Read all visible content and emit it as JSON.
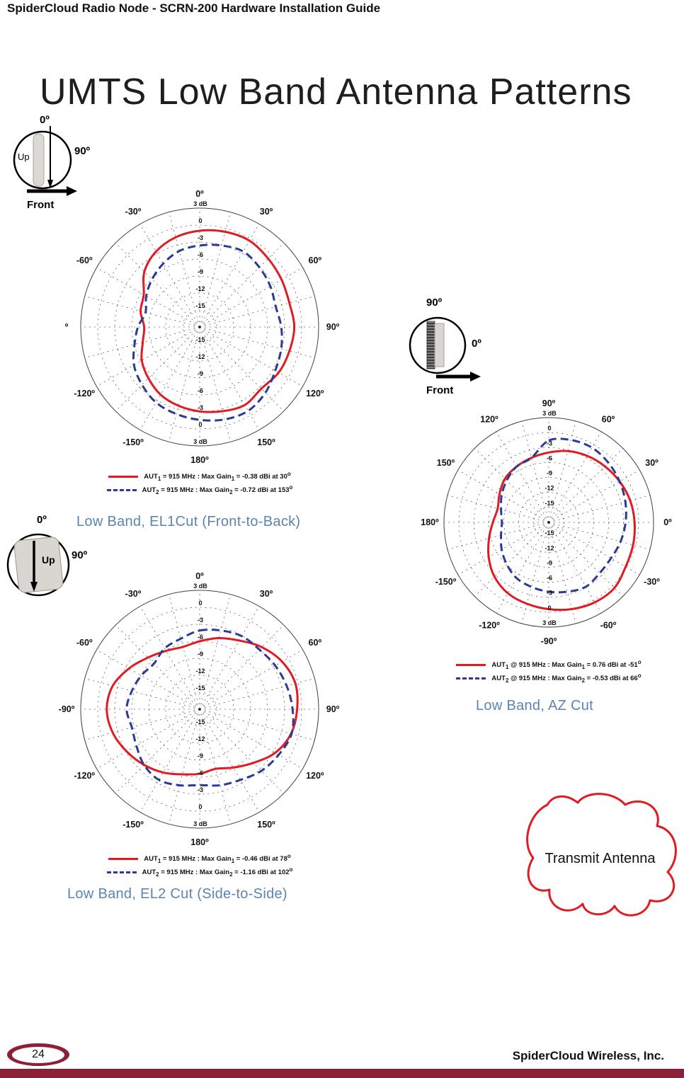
{
  "header": {
    "title": "SpiderCloud Radio Node - SCRN-200 Hardware Installation Guide"
  },
  "page_title": "UMTS Low Band Antenna Patterns",
  "captions": {
    "el1": "Low Band, EL1Cut (Front-to-Back)",
    "el2": "Low Band, EL2 Cut (Side-to-Side)",
    "az": "Low Band, AZ Cut"
  },
  "transmit_antenna": {
    "label": "Transmit Antenna"
  },
  "footer": {
    "page_number": "24",
    "company": "SpiderCloud Wireless, Inc."
  },
  "diagrams": {
    "el1": {
      "top": "0º",
      "up": "Up",
      "right": "90º",
      "front": "Front"
    },
    "az": {
      "top": "90º",
      "right": "0º",
      "front": "Front"
    },
    "el2": {
      "top": "0º",
      "up": "Up",
      "right": "90º"
    }
  },
  "colors": {
    "aut1": "#e11b24",
    "aut2": "#2b3a96",
    "caption": "#5b84b5",
    "footer_bar": "#8c2036"
  },
  "chart_data": [
    {
      "id": "el1",
      "type": "polar-line",
      "orientation": "top-cw",
      "size": 420,
      "radius": 168,
      "scale": {
        "outer": 3,
        "center": -18,
        "rings": [
          3,
          0,
          -3,
          -6,
          -9,
          -12,
          -15
        ],
        "ring_labels": [
          "3 dB",
          "0",
          "-3",
          "-6",
          "-9",
          "-12",
          "-15"
        ]
      },
      "angle_labels": [
        {
          "a": 0,
          "t": "0º"
        },
        {
          "a": 30,
          "t": "30º"
        },
        {
          "a": 60,
          "t": "60º"
        },
        {
          "a": 90,
          "t": "90º"
        },
        {
          "a": 120,
          "t": "120º"
        },
        {
          "a": 150,
          "t": "150º"
        },
        {
          "a": 180,
          "t": "180º"
        },
        {
          "a": -150,
          "t": "-150º"
        },
        {
          "a": -120,
          "t": "-120º"
        },
        {
          "a": -90,
          "t": "º"
        },
        {
          "a": -60,
          "t": "-60º"
        },
        {
          "a": -30,
          "t": "-30º"
        }
      ],
      "series": [
        {
          "name": "AUT1",
          "color": "#e11b24",
          "dash": false,
          "points": [
            [
              0,
              -1.0
            ],
            [
              15,
              -0.6
            ],
            [
              30,
              -0.4
            ],
            [
              45,
              -0.9
            ],
            [
              60,
              -1.3
            ],
            [
              75,
              -1.6
            ],
            [
              90,
              -1.3
            ],
            [
              105,
              -1.6
            ],
            [
              120,
              -1.9
            ],
            [
              135,
              -2.6
            ],
            [
              150,
              -2.1
            ],
            [
              165,
              -2.6
            ],
            [
              180,
              -3.1
            ],
            [
              195,
              -3.6
            ],
            [
              210,
              -4.2
            ],
            [
              225,
              -5.2
            ],
            [
              240,
              -6.2
            ],
            [
              255,
              -7.6
            ],
            [
              270,
              -8.2
            ],
            [
              285,
              -7.2
            ],
            [
              300,
              -6.6
            ],
            [
              315,
              -4.2
            ],
            [
              330,
              -2.6
            ],
            [
              345,
              -1.6
            ]
          ]
        },
        {
          "name": "AUT2",
          "color": "#2b3a96",
          "dash": true,
          "points": [
            [
              0,
              -3.6
            ],
            [
              15,
              -3.1
            ],
            [
              30,
              -2.6
            ],
            [
              45,
              -3.1
            ],
            [
              60,
              -3.6
            ],
            [
              75,
              -4.1
            ],
            [
              90,
              -3.6
            ],
            [
              105,
              -3.1
            ],
            [
              120,
              -2.6
            ],
            [
              135,
              -1.6
            ],
            [
              150,
              -0.9
            ],
            [
              165,
              -1.1
            ],
            [
              180,
              -1.6
            ],
            [
              195,
              -2.1
            ],
            [
              210,
              -2.6
            ],
            [
              225,
              -3.6
            ],
            [
              240,
              -4.6
            ],
            [
              255,
              -6.1
            ],
            [
              270,
              -7.1
            ],
            [
              285,
              -8.1
            ],
            [
              300,
              -7.1
            ],
            [
              315,
              -6.1
            ],
            [
              330,
              -5.1
            ],
            [
              345,
              -4.1
            ]
          ]
        }
      ],
      "legend": [
        {
          "color": "#e11b24",
          "dash": false,
          "parts": [
            {
              "t": "AUT"
            },
            {
              "sub": "1"
            },
            {
              "t": " = 915 MHz : Max Gain"
            },
            {
              "sub": "1"
            },
            {
              "t": " = -0.38 dBi at 30"
            },
            {
              "sup": "o"
            }
          ]
        },
        {
          "color": "#2b3a96",
          "dash": true,
          "parts": [
            {
              "t": "AUT"
            },
            {
              "sub": "2"
            },
            {
              "t": " = 915 MHz : Max Gain"
            },
            {
              "sub": "2"
            },
            {
              "t": " = -0.72 dBi at 153"
            },
            {
              "sup": "o"
            }
          ]
        }
      ]
    },
    {
      "id": "el2",
      "type": "polar-line",
      "orientation": "top-cw",
      "size": 420,
      "radius": 168,
      "scale": {
        "outer": 3,
        "center": -18,
        "rings": [
          3,
          0,
          -3,
          -6,
          -9,
          -12,
          -15
        ],
        "ring_labels": [
          "3 dB",
          "0",
          "-3",
          "-6",
          "-9",
          "-12",
          "-15"
        ]
      },
      "angle_labels": [
        {
          "a": 0,
          "t": "0º"
        },
        {
          "a": 30,
          "t": "30º"
        },
        {
          "a": 60,
          "t": "60º"
        },
        {
          "a": 90,
          "t": "90º"
        },
        {
          "a": 120,
          "t": "120º"
        },
        {
          "a": 150,
          "t": "150º"
        },
        {
          "a": 180,
          "t": "180º"
        },
        {
          "a": -150,
          "t": "-150º"
        },
        {
          "a": -120,
          "t": "-120º"
        },
        {
          "a": -90,
          "t": "-90º"
        },
        {
          "a": -60,
          "t": "-60º"
        },
        {
          "a": -30,
          "t": "-30º"
        }
      ],
      "series": [
        {
          "name": "AUT1",
          "color": "#e11b24",
          "dash": false,
          "points": [
            [
              0,
              -6.0
            ],
            [
              15,
              -5.0
            ],
            [
              30,
              -4.0
            ],
            [
              45,
              -2.5
            ],
            [
              60,
              -1.2
            ],
            [
              75,
              -0.5
            ],
            [
              90,
              -0.8
            ],
            [
              105,
              -1.3
            ],
            [
              120,
              -2.6
            ],
            [
              135,
              -4.6
            ],
            [
              150,
              -6.1
            ],
            [
              165,
              -7.1
            ],
            [
              180,
              -6.6
            ],
            [
              195,
              -6.1
            ],
            [
              210,
              -5.1
            ],
            [
              225,
              -4.1
            ],
            [
              240,
              -3.1
            ],
            [
              255,
              -2.1
            ],
            [
              270,
              -1.6
            ],
            [
              285,
              -2.1
            ],
            [
              300,
              -3.6
            ],
            [
              315,
              -5.1
            ],
            [
              330,
              -6.1
            ],
            [
              345,
              -6.6
            ]
          ]
        },
        {
          "name": "AUT2",
          "color": "#2b3a96",
          "dash": true,
          "points": [
            [
              0,
              -4.1
            ],
            [
              15,
              -3.6
            ],
            [
              30,
              -3.1
            ],
            [
              45,
              -3.1
            ],
            [
              60,
              -2.6
            ],
            [
              75,
              -2.1
            ],
            [
              90,
              -1.6
            ],
            [
              105,
              -1.2
            ],
            [
              120,
              -1.9
            ],
            [
              135,
              -2.6
            ],
            [
              150,
              -3.6
            ],
            [
              165,
              -4.1
            ],
            [
              180,
              -4.6
            ],
            [
              195,
              -4.1
            ],
            [
              210,
              -3.6
            ],
            [
              225,
              -4.1
            ],
            [
              240,
              -5.1
            ],
            [
              255,
              -5.6
            ],
            [
              270,
              -5.1
            ],
            [
              285,
              -5.6
            ],
            [
              300,
              -6.1
            ],
            [
              315,
              -6.6
            ],
            [
              330,
              -5.6
            ],
            [
              345,
              -5.1
            ]
          ]
        }
      ],
      "legend": [
        {
          "color": "#e11b24",
          "dash": false,
          "parts": [
            {
              "t": "AUT"
            },
            {
              "sub": "1"
            },
            {
              "t": " = 915 MHz : Max Gain"
            },
            {
              "sub": "1"
            },
            {
              "t": " = -0.46 dBi at 78"
            },
            {
              "sup": "o"
            }
          ]
        },
        {
          "color": "#2b3a96",
          "dash": true,
          "parts": [
            {
              "t": "AUT"
            },
            {
              "sub": "2"
            },
            {
              "t": " = 915 MHz : Max Gain"
            },
            {
              "sub": "2"
            },
            {
              "t": " = -1.16 dBi at 102"
            },
            {
              "sup": "o"
            }
          ]
        }
      ]
    },
    {
      "id": "az",
      "type": "polar-line",
      "orientation": "right-ccw",
      "size": 400,
      "radius": 148,
      "scale": {
        "outer": 3,
        "center": -18,
        "rings": [
          3,
          0,
          -3,
          -6,
          -9,
          -12,
          -15
        ],
        "ring_labels": [
          "3 dB",
          "0",
          "-3",
          "-6",
          "-9",
          "-12",
          "-15"
        ]
      },
      "angle_labels": [
        {
          "a": 90,
          "t": "90º"
        },
        {
          "a": 60,
          "t": "60º"
        },
        {
          "a": 30,
          "t": "30º"
        },
        {
          "a": 0,
          "t": "0º"
        },
        {
          "a": -30,
          "t": "-30º"
        },
        {
          "a": -60,
          "t": "-60º"
        },
        {
          "a": -90,
          "t": "-90º"
        },
        {
          "a": -120,
          "t": "-120º"
        },
        {
          "a": -150,
          "t": "-150º"
        },
        {
          "a": 180,
          "t": "180º"
        },
        {
          "a": 150,
          "t": "150º"
        },
        {
          "a": 120,
          "t": "120º"
        }
      ],
      "series": [
        {
          "name": "AUT1",
          "color": "#e11b24",
          "dash": false,
          "points": [
            [
              90,
              -4.0
            ],
            [
              75,
              -3.2
            ],
            [
              60,
              -2.6
            ],
            [
              45,
              -2.1
            ],
            [
              30,
              -1.6
            ],
            [
              15,
              -1.1
            ],
            [
              0,
              -0.8
            ],
            [
              -15,
              -0.5
            ],
            [
              -30,
              -0.2
            ],
            [
              -45,
              0.6
            ],
            [
              -60,
              0.5
            ],
            [
              -75,
              0.0
            ],
            [
              -90,
              -0.6
            ],
            [
              -105,
              -1.1
            ],
            [
              -120,
              -1.6
            ],
            [
              -135,
              -2.6
            ],
            [
              -150,
              -4.1
            ],
            [
              -165,
              -5.6
            ],
            [
              180,
              -6.8
            ],
            [
              165,
              -7.4
            ],
            [
              150,
              -6.6
            ],
            [
              135,
              -5.6
            ],
            [
              120,
              -5.1
            ],
            [
              105,
              -4.6
            ]
          ]
        },
        {
          "name": "AUT2",
          "color": "#2b3a96",
          "dash": true,
          "points": [
            [
              90,
              -1.6
            ],
            [
              75,
              -0.9
            ],
            [
              60,
              -0.7
            ],
            [
              45,
              -1.1
            ],
            [
              30,
              -1.6
            ],
            [
              15,
              -2.1
            ],
            [
              0,
              -2.6
            ],
            [
              -15,
              -3.1
            ],
            [
              -30,
              -3.6
            ],
            [
              -45,
              -3.6
            ],
            [
              -60,
              -3.1
            ],
            [
              -75,
              -3.6
            ],
            [
              -90,
              -4.1
            ],
            [
              -105,
              -4.6
            ],
            [
              -120,
              -5.1
            ],
            [
              -135,
              -6.1
            ],
            [
              -150,
              -7.1
            ],
            [
              -165,
              -8.1
            ],
            [
              180,
              -8.6
            ],
            [
              165,
              -8.1
            ],
            [
              150,
              -7.1
            ],
            [
              135,
              -6.1
            ],
            [
              120,
              -5.1
            ],
            [
              105,
              -4.6
            ]
          ]
        }
      ],
      "legend": [
        {
          "color": "#e11b24",
          "dash": false,
          "parts": [
            {
              "t": "AUT"
            },
            {
              "sub": "1"
            },
            {
              "t": " @ 915 MHz : Max Gain"
            },
            {
              "sub": "1"
            },
            {
              "t": " = 0.76 dBi at -51"
            },
            {
              "sup": "o"
            }
          ]
        },
        {
          "color": "#2b3a96",
          "dash": true,
          "parts": [
            {
              "t": "AUT"
            },
            {
              "sub": "2"
            },
            {
              "t": " @ 915 MHz : Max Gain"
            },
            {
              "sub": "2"
            },
            {
              "t": " = -0.53 dBi at 66"
            },
            {
              "sup": "o"
            }
          ]
        }
      ]
    }
  ]
}
